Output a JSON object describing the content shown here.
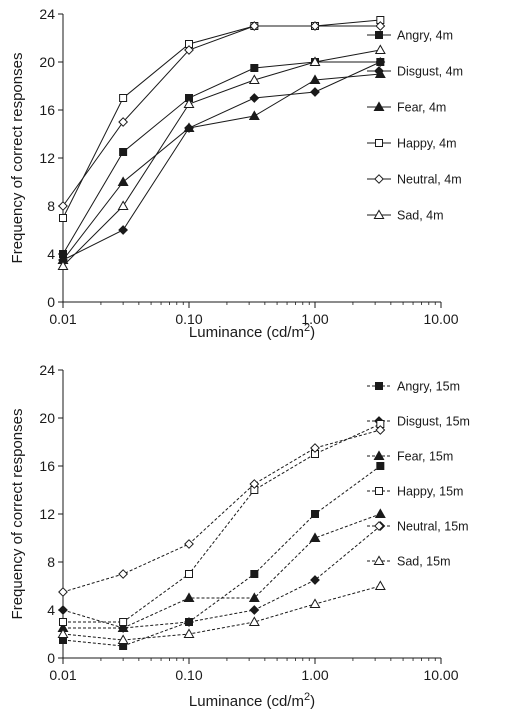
{
  "chart_data": [
    {
      "type": "line",
      "xscale": "log",
      "xlim": [
        0.01,
        10
      ],
      "ylim": [
        0,
        24
      ],
      "xticks": [
        "0.01",
        "0.10",
        "1.00",
        "10.00"
      ],
      "yticks": [
        "0",
        "4",
        "8",
        "12",
        "16",
        "20",
        "24"
      ],
      "xlabel": "Luminance (cd/m",
      "xlabel_sup": "2",
      "xlabel_close": ")",
      "ylabel": "Frequency of correct responses",
      "legend_position": "right",
      "line_style": "solid",
      "x": [
        0.01,
        0.03,
        0.1,
        0.33,
        1.0,
        3.3
      ],
      "series": [
        {
          "name": "Angry, 4m",
          "marker": "square-filled",
          "values": [
            4,
            12.5,
            17,
            19.5,
            20,
            20
          ]
        },
        {
          "name": "Disgust, 4m",
          "marker": "diamond-filled",
          "values": [
            3.5,
            6,
            14.5,
            17,
            17.5,
            20
          ]
        },
        {
          "name": "Fear, 4m",
          "marker": "triangle-filled",
          "values": [
            3.5,
            10,
            14.5,
            15.5,
            18.5,
            19
          ]
        },
        {
          "name": "Happy, 4m",
          "marker": "square-open",
          "values": [
            7,
            17,
            21.5,
            23,
            23,
            23.5
          ]
        },
        {
          "name": "Neutral, 4m",
          "marker": "diamond-open",
          "values": [
            8,
            15,
            21,
            23,
            23,
            23
          ]
        },
        {
          "name": "Sad, 4m",
          "marker": "triangle-open",
          "values": [
            3,
            8,
            16.5,
            18.5,
            20,
            21
          ]
        }
      ]
    },
    {
      "type": "line",
      "xscale": "log",
      "xlim": [
        0.01,
        10
      ],
      "ylim": [
        0,
        24
      ],
      "xticks": [
        "0.01",
        "0.10",
        "1.00",
        "10.00"
      ],
      "yticks": [
        "0",
        "4",
        "8",
        "12",
        "16",
        "20",
        "24"
      ],
      "xlabel": "Luminance (cd/m",
      "xlabel_sup": "2",
      "xlabel_close": ")",
      "ylabel": "Frequency of correct responses",
      "legend_position": "right",
      "line_style": "dashed",
      "x": [
        0.01,
        0.03,
        0.1,
        0.33,
        1.0,
        3.3
      ],
      "series": [
        {
          "name": "Angry, 15m",
          "marker": "square-filled",
          "values": [
            1.5,
            1,
            3,
            7,
            12,
            16
          ]
        },
        {
          "name": "Disgust, 15m",
          "marker": "diamond-filled",
          "values": [
            4,
            2.5,
            3,
            4,
            6.5,
            11
          ]
        },
        {
          "name": "Fear, 15m",
          "marker": "triangle-filled",
          "values": [
            2.5,
            2.5,
            5,
            5,
            10,
            12
          ]
        },
        {
          "name": "Happy, 15m",
          "marker": "square-open",
          "values": [
            3,
            3,
            7,
            14,
            17,
            19.5
          ]
        },
        {
          "name": "Neutral, 15m",
          "marker": "diamond-open",
          "values": [
            5.5,
            7,
            9.5,
            14.5,
            17.5,
            19
          ]
        },
        {
          "name": "Sad, 15m",
          "marker": "triangle-open",
          "values": [
            2,
            1.5,
            2,
            3,
            4.5,
            6
          ]
        }
      ]
    }
  ]
}
